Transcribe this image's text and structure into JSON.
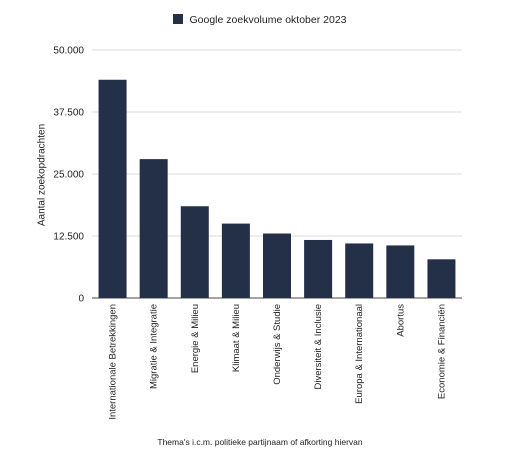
{
  "chart_data": {
    "type": "bar",
    "title": "",
    "legend": {
      "label": "Google zoekvolume oktober 2023",
      "position": "top",
      "color": "#243047"
    },
    "xlabel": "Thema's i.c.m. politieke partijnaam of afkorting hiervan",
    "ylabel": "Aantal zoekopdrachten",
    "ylim": [
      0,
      50000
    ],
    "yticks": [
      {
        "value": 0,
        "label": "0"
      },
      {
        "value": 12500,
        "label": "12.500"
      },
      {
        "value": 25000,
        "label": "25.000"
      },
      {
        "value": 37500,
        "label": "37.500"
      },
      {
        "value": 50000,
        "label": "50.000"
      }
    ],
    "grid": true,
    "categories": [
      "Internationale Betrekkingen",
      "Migratie & Integratie",
      "Energie & Milieu",
      "Klimaat & Milieu",
      "Onderwijs & Studie",
      "Diversiteit & Inclusie",
      "Europa & Internationaal",
      "Abortus",
      "Economie & Financiën"
    ],
    "values": [
      44000,
      28000,
      18500,
      15000,
      13000,
      11700,
      11000,
      10600,
      7800
    ],
    "bar_color": "#243047"
  }
}
